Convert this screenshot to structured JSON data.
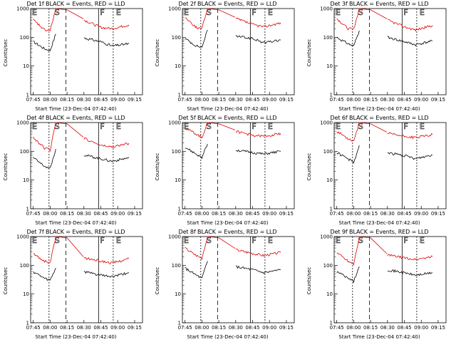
{
  "xlabel": "Start Time (23-Dec-04 07:42:40)",
  "ylabel": "Counts/sec",
  "colors": {
    "events": "#000000",
    "lld": "#e00000"
  },
  "chart_data": [
    {
      "type": "line",
      "title": "Det 1f BLACK = Events, RED = LLD",
      "series": [
        {
          "name": "Events",
          "values": [
            [
              "07:45",
              70
            ],
            [
              "07:55",
              40
            ],
            [
              "08:00",
              35
            ],
            [
              "08:05",
              130
            ],
            [
              "08:30",
              95
            ],
            [
              "08:45",
              70
            ],
            [
              "08:55",
              50
            ],
            [
              "09:10",
              60
            ]
          ]
        },
        {
          "name": "LLD",
          "values": [
            [
              "07:45",
              400
            ],
            [
              "07:55",
              180
            ],
            [
              "08:00",
              170
            ],
            [
              "08:05",
              1000
            ],
            [
              "08:15",
              900
            ],
            [
              "08:30",
              400
            ],
            [
              "08:45",
              220
            ],
            [
              "08:55",
              200
            ],
            [
              "09:10",
              270
            ]
          ]
        }
      ],
      "ylim": [
        1,
        1000
      ],
      "yscale": "log",
      "xticks": [
        "07:45",
        "08:00",
        "08:15",
        "08:30",
        "08:45",
        "09:00",
        "09:15"
      ],
      "yticks": [
        "1",
        "10",
        "100",
        "1000"
      ],
      "markers": [
        "E",
        "S",
        "F",
        "E"
      ]
    },
    {
      "type": "line",
      "title": "Det 2f BLACK = Events, RED = LLD",
      "series": [
        {
          "name": "Events",
          "values": [
            [
              "07:45",
              90
            ],
            [
              "07:55",
              50
            ],
            [
              "08:00",
              45
            ],
            [
              "08:05",
              180
            ],
            [
              "08:30",
              110
            ],
            [
              "08:45",
              90
            ],
            [
              "08:55",
              65
            ],
            [
              "09:10",
              80
            ]
          ]
        },
        {
          "name": "LLD",
          "values": [
            [
              "07:45",
              500
            ],
            [
              "07:55",
              220
            ],
            [
              "08:00",
              200
            ],
            [
              "08:05",
              1000
            ],
            [
              "08:15",
              900
            ],
            [
              "08:30",
              450
            ],
            [
              "08:45",
              280
            ],
            [
              "08:55",
              230
            ],
            [
              "09:10",
              320
            ]
          ]
        }
      ],
      "ylim": [
        1,
        1000
      ],
      "yscale": "log",
      "xticks": [
        "07:45",
        "08:00",
        "08:15",
        "08:30",
        "08:45",
        "09:00",
        "09:15"
      ],
      "yticks": [
        "1",
        "10",
        "100",
        "1000"
      ],
      "markers": [
        "E",
        "S",
        "F",
        "E"
      ]
    },
    {
      "type": "line",
      "title": "Det 3f BLACK = Events, RED = LLD",
      "series": [
        {
          "name": "Events",
          "values": [
            [
              "07:45",
              100
            ],
            [
              "07:55",
              60
            ],
            [
              "08:00",
              50
            ],
            [
              "08:05",
              170
            ],
            [
              "08:30",
              100
            ],
            [
              "08:45",
              70
            ],
            [
              "08:55",
              55
            ],
            [
              "09:10",
              75
            ]
          ]
        },
        {
          "name": "LLD",
          "values": [
            [
              "07:45",
              450
            ],
            [
              "07:55",
              200
            ],
            [
              "08:00",
              190
            ],
            [
              "08:05",
              1000
            ],
            [
              "08:15",
              900
            ],
            [
              "08:30",
              400
            ],
            [
              "08:45",
              230
            ],
            [
              "08:55",
              180
            ],
            [
              "09:10",
              260
            ]
          ]
        }
      ],
      "ylim": [
        1,
        1000
      ],
      "yscale": "log",
      "xticks": [
        "07:45",
        "08:00",
        "08:15",
        "08:30",
        "08:45",
        "09:00",
        "09:15"
      ],
      "yticks": [
        "1",
        "10",
        "100",
        "1000"
      ],
      "markers": [
        "E",
        "S",
        "F",
        "E"
      ]
    },
    {
      "type": "line",
      "title": "Det 4f BLACK = Events, RED = LLD",
      "series": [
        {
          "name": "Events",
          "values": [
            [
              "07:45",
              60
            ],
            [
              "07:55",
              30
            ],
            [
              "08:00",
              25
            ],
            [
              "08:05",
              120
            ],
            [
              "08:30",
              75
            ],
            [
              "08:45",
              55
            ],
            [
              "08:55",
              45
            ],
            [
              "09:10",
              60
            ]
          ]
        },
        {
          "name": "LLD",
          "values": [
            [
              "07:45",
              300
            ],
            [
              "07:55",
              130
            ],
            [
              "08:00",
              110
            ],
            [
              "08:05",
              1000
            ],
            [
              "08:15",
              900
            ],
            [
              "08:30",
              280
            ],
            [
              "08:45",
              160
            ],
            [
              "08:55",
              140
            ],
            [
              "09:10",
              190
            ]
          ]
        }
      ],
      "ylim": [
        1,
        1000
      ],
      "yscale": "log",
      "xticks": [
        "07:45",
        "08:00",
        "08:15",
        "08:30",
        "08:45",
        "09:00",
        "09:15"
      ],
      "yticks": [
        "1",
        "10",
        "100",
        "1000"
      ],
      "markers": [
        "E",
        "S",
        "F",
        "E"
      ]
    },
    {
      "type": "line",
      "title": "Det 5f BLACK = Events, RED = LLD",
      "series": [
        {
          "name": "Events",
          "values": [
            [
              "07:45",
              140
            ],
            [
              "07:55",
              80
            ],
            [
              "08:00",
              60
            ],
            [
              "08:05",
              180
            ],
            [
              "08:30",
              110
            ],
            [
              "08:45",
              90
            ],
            [
              "08:55",
              80
            ],
            [
              "09:10",
              100
            ]
          ]
        },
        {
          "name": "LLD",
          "values": [
            [
              "07:45",
              650
            ],
            [
              "07:55",
              400
            ],
            [
              "08:00",
              300
            ],
            [
              "08:05",
              1000
            ],
            [
              "08:15",
              900
            ],
            [
              "08:30",
              500
            ],
            [
              "08:45",
              360
            ],
            [
              "08:55",
              330
            ],
            [
              "09:10",
              420
            ]
          ]
        }
      ],
      "ylim": [
        1,
        1000
      ],
      "yscale": "log",
      "xticks": [
        "07:45",
        "08:00",
        "08:15",
        "08:30",
        "08:45",
        "09:00",
        "09:15"
      ],
      "yticks": [
        "1",
        "10",
        "100",
        "1000"
      ],
      "markers": [
        "E",
        "S",
        "F",
        "E"
      ]
    },
    {
      "type": "line",
      "title": "Det 6f BLACK = Events, RED = LLD",
      "series": [
        {
          "name": "Events",
          "values": [
            [
              "07:45",
              90
            ],
            [
              "07:55",
              55
            ],
            [
              "08:00",
              40
            ],
            [
              "08:05",
              160
            ],
            [
              "08:30",
              90
            ],
            [
              "08:45",
              70
            ],
            [
              "08:55",
              55
            ],
            [
              "09:10",
              75
            ]
          ]
        },
        {
          "name": "LLD",
          "values": [
            [
              "07:45",
              500
            ],
            [
              "07:55",
              280
            ],
            [
              "08:00",
              230
            ],
            [
              "08:05",
              1000
            ],
            [
              "08:15",
              900
            ],
            [
              "08:30",
              420
            ],
            [
              "08:45",
              330
            ],
            [
              "08:55",
              300
            ],
            [
              "09:10",
              380
            ]
          ]
        }
      ],
      "ylim": [
        1,
        1000
      ],
      "yscale": "log",
      "xticks": [
        "07:45",
        "08:00",
        "08:15",
        "08:30",
        "08:45",
        "09:00",
        "09:15"
      ],
      "yticks": [
        "1",
        "10",
        "100",
        "1000"
      ],
      "markers": [
        "E",
        "S",
        "F",
        "E"
      ]
    },
    {
      "type": "line",
      "title": "Det 7f BLACK = Events, RED = LLD",
      "series": [
        {
          "name": "Events",
          "values": [
            [
              "07:45",
              60
            ],
            [
              "07:55",
              35
            ],
            [
              "08:00",
              30
            ],
            [
              "08:05",
              80
            ],
            [
              "08:30",
              60
            ],
            [
              "08:45",
              45
            ],
            [
              "08:55",
              40
            ],
            [
              "09:10",
              55
            ]
          ]
        },
        {
          "name": "LLD",
          "values": [
            [
              "07:45",
              250
            ],
            [
              "07:55",
              140
            ],
            [
              "08:00",
              120
            ],
            [
              "08:05",
              1000
            ],
            [
              "08:15",
              900
            ],
            [
              "08:30",
              180
            ],
            [
              "08:45",
              140
            ],
            [
              "08:55",
              120
            ],
            [
              "09:10",
              170
            ]
          ]
        }
      ],
      "ylim": [
        1,
        1000
      ],
      "yscale": "log",
      "xticks": [
        "07:45",
        "08:00",
        "08:15",
        "08:30",
        "08:45",
        "09:00",
        "09:15"
      ],
      "yticks": [
        "1",
        "10",
        "100",
        "1000"
      ],
      "markers": [
        "E",
        "S",
        "F",
        "E"
      ]
    },
    {
      "type": "line",
      "title": "Det 8f BLACK = Events, RED = LLD",
      "series": [
        {
          "name": "Events",
          "values": [
            [
              "07:45",
              80
            ],
            [
              "07:55",
              45
            ],
            [
              "08:00",
              35
            ],
            [
              "08:05",
              140
            ],
            [
              "08:30",
              90
            ],
            [
              "08:45",
              70
            ],
            [
              "08:55",
              55
            ],
            [
              "09:10",
              70
            ]
          ]
        },
        {
          "name": "LLD",
          "values": [
            [
              "07:45",
              400
            ],
            [
              "07:55",
              220
            ],
            [
              "08:00",
              180
            ],
            [
              "08:05",
              1000
            ],
            [
              "08:15",
              900
            ],
            [
              "08:30",
              350
            ],
            [
              "08:45",
              260
            ],
            [
              "08:55",
              220
            ],
            [
              "09:10",
              280
            ]
          ]
        }
      ],
      "ylim": [
        1,
        1000
      ],
      "yscale": "log",
      "xticks": [
        "07:45",
        "08:00",
        "08:15",
        "08:30",
        "08:45",
        "09:00",
        "09:15"
      ],
      "yticks": [
        "1",
        "10",
        "100",
        "1000"
      ],
      "markers": [
        "E",
        "S",
        "F",
        "E"
      ]
    },
    {
      "type": "line",
      "title": "Det 9f BLACK = Events, RED = LLD",
      "series": [
        {
          "name": "Events",
          "values": [
            [
              "07:45",
              60
            ],
            [
              "07:55",
              35
            ],
            [
              "08:00",
              28
            ],
            [
              "08:05",
              90
            ],
            [
              "08:30",
              70
            ],
            [
              "08:45",
              55
            ],
            [
              "08:55",
              45
            ],
            [
              "09:10",
              55
            ]
          ]
        },
        {
          "name": "LLD",
          "values": [
            [
              "07:45",
              280
            ],
            [
              "07:55",
              140
            ],
            [
              "08:00",
              110
            ],
            [
              "08:05",
              1000
            ],
            [
              "08:15",
              900
            ],
            [
              "08:30",
              230
            ],
            [
              "08:45",
              180
            ],
            [
              "08:55",
              160
            ],
            [
              "09:10",
              200
            ]
          ]
        }
      ],
      "ylim": [
        1,
        1000
      ],
      "yscale": "log",
      "xticks": [
        "07:45",
        "08:00",
        "08:15",
        "08:30",
        "08:45",
        "09:00",
        "09:15"
      ],
      "yticks": [
        "1",
        "10",
        "100",
        "1000"
      ],
      "markers": [
        "E",
        "S",
        "F",
        "E"
      ]
    }
  ]
}
